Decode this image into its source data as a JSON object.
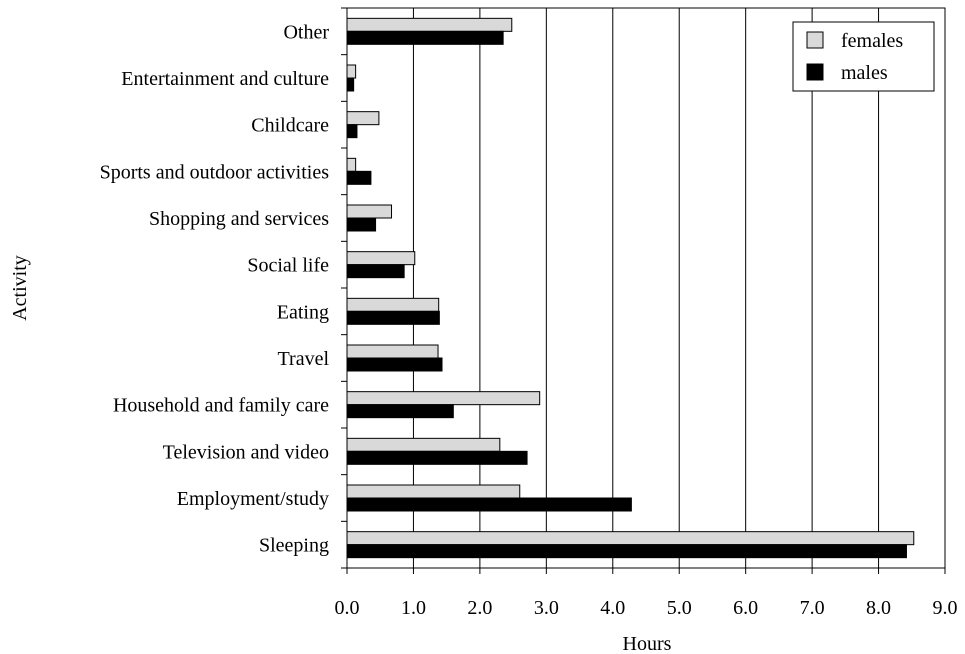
{
  "chart_data": {
    "type": "bar",
    "orientation": "horizontal",
    "categories": [
      "Other",
      "Entertainment and culture",
      "Childcare",
      "Sports and outdoor activities",
      "Shopping and services",
      "Social life",
      "Eating",
      "Travel",
      "Household and family care",
      "Television and video",
      "Employment/study",
      "Sleeping"
    ],
    "series": [
      {
        "name": "females",
        "color": "#d9d9d9",
        "values": [
          2.48,
          0.13,
          0.48,
          0.13,
          0.67,
          1.02,
          1.38,
          1.37,
          2.9,
          2.3,
          2.6,
          8.53
        ]
      },
      {
        "name": "males",
        "color": "#000000",
        "values": [
          2.35,
          0.1,
          0.15,
          0.36,
          0.43,
          0.86,
          1.39,
          1.43,
          1.6,
          2.71,
          4.28,
          8.42
        ]
      }
    ],
    "xlabel": "Hours",
    "ylabel": "Activity",
    "xlim": [
      0,
      9
    ],
    "xticks": [
      "0.0",
      "1.0",
      "2.0",
      "3.0",
      "4.0",
      "5.0",
      "6.0",
      "7.0",
      "8.0",
      "9.0"
    ],
    "grid": "vertical",
    "legend_position": "top-right"
  }
}
